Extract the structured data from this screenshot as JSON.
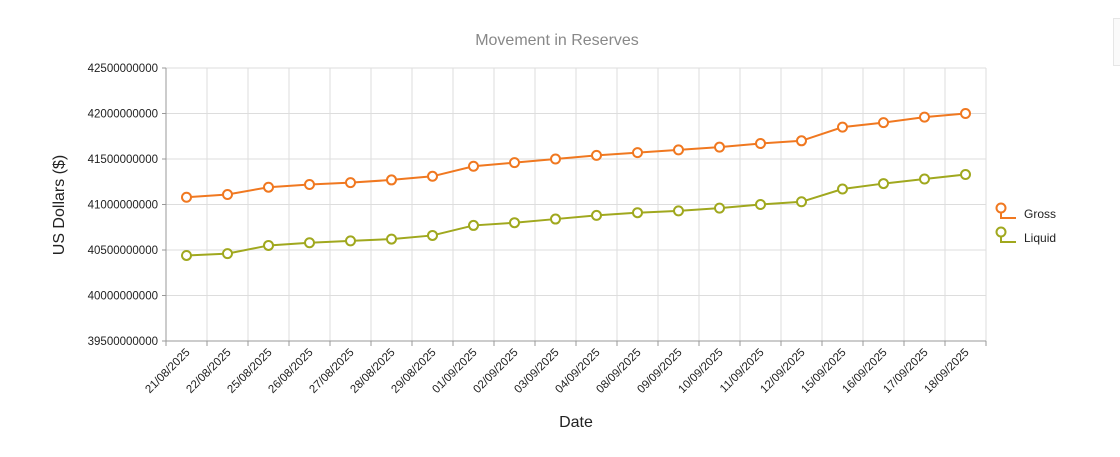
{
  "chart_data": {
    "type": "line",
    "title": "Movement in Reserves",
    "xlabel": "Date",
    "ylabel": "US Dollars ($)",
    "ylim": [
      39500000000,
      42500000000
    ],
    "yticks": [
      39500000000,
      40000000000,
      40500000000,
      41000000000,
      41500000000,
      42000000000,
      42500000000
    ],
    "grid": true,
    "legend_position": "right",
    "categories": [
      "21/08/2025",
      "22/08/2025",
      "25/08/2025",
      "26/08/2025",
      "27/08/2025",
      "28/08/2025",
      "29/08/2025",
      "01/09/2025",
      "02/09/2025",
      "03/09/2025",
      "04/09/2025",
      "08/09/2025",
      "09/09/2025",
      "10/09/2025",
      "11/09/2025",
      "12/09/2025",
      "15/09/2025",
      "16/09/2025",
      "17/09/2025",
      "18/09/2025"
    ],
    "series": [
      {
        "name": "Gross",
        "color": "#f07820",
        "values": [
          41080000000,
          41110000000,
          41190000000,
          41220000000,
          41240000000,
          41270000000,
          41310000000,
          41420000000,
          41460000000,
          41500000000,
          41540000000,
          41570000000,
          41600000000,
          41630000000,
          41670000000,
          41700000000,
          41850000000,
          41900000000,
          41960000000,
          42000000000
        ]
      },
      {
        "name": "Liquid",
        "color": "#a0a81e",
        "values": [
          40440000000,
          40460000000,
          40550000000,
          40580000000,
          40600000000,
          40620000000,
          40660000000,
          40770000000,
          40800000000,
          40840000000,
          40880000000,
          40910000000,
          40930000000,
          40960000000,
          41000000000,
          41030000000,
          41170000000,
          41230000000,
          41280000000,
          41330000000
        ]
      }
    ]
  }
}
